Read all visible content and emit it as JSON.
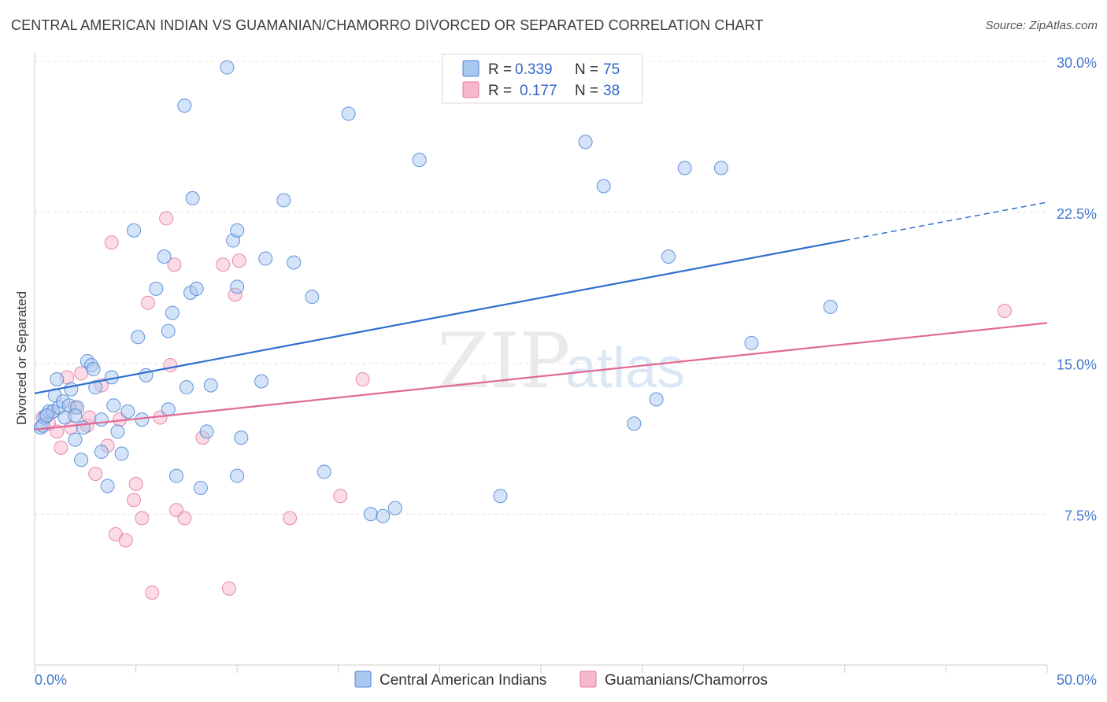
{
  "header": {
    "title": "CENTRAL AMERICAN INDIAN VS GUAMANIAN/CHAMORRO DIVORCED OR SEPARATED CORRELATION CHART",
    "source": "Source: ZipAtlas.com"
  },
  "watermark": {
    "part1": "ZIP",
    "part2": "atlas"
  },
  "colors": {
    "series1_fill": "#a9c8f0",
    "series1_stroke": "#4a84d4",
    "series1_line": "#2f6fcf",
    "series2_fill": "#f7b8cc",
    "series2_stroke": "#e07a9c",
    "series2_line": "#e06a93",
    "grid": "#e3e3e3",
    "axis_text": "#4477cc"
  },
  "chart_data": {
    "type": "scatter",
    "title": "CENTRAL AMERICAN INDIAN VS GUAMANIAN/CHAMORRO DIVORCED OR SEPARATED CORRELATION CHART",
    "xlabel": "",
    "ylabel": "Divorced or Separated",
    "xlim": [
      0,
      50
    ],
    "ylim": [
      0,
      30
    ],
    "x_tick_labels": {
      "min": "0.0%",
      "max": "50.0%"
    },
    "y_ticks": [
      {
        "value": 7.5,
        "label": "7.5%"
      },
      {
        "value": 15.0,
        "label": "15.0%"
      },
      {
        "value": 22.5,
        "label": "22.5%"
      },
      {
        "value": 30.0,
        "label": "30.0%"
      }
    ],
    "grid": true,
    "legend_top": [
      {
        "r_label": "R =",
        "r_value": "0.339",
        "n_label": "N =",
        "n_value": "75"
      },
      {
        "r_label": "R =",
        "r_value": "0.177",
        "n_label": "N =",
        "n_value": "38"
      }
    ],
    "series": [
      {
        "name": "Central American Indians",
        "trend": {
          "x0": 0,
          "y0": 13.5,
          "x1": 40,
          "y1": 21.1,
          "dash_to_x": 50,
          "dash_to_y": 23.0
        },
        "points": [
          [
            0.3,
            11.8
          ],
          [
            0.5,
            12.3
          ],
          [
            0.7,
            12.6
          ],
          [
            0.9,
            12.6
          ],
          [
            1.0,
            13.4
          ],
          [
            1.1,
            14.2
          ],
          [
            1.2,
            12.8
          ],
          [
            1.4,
            13.1
          ],
          [
            1.5,
            12.3
          ],
          [
            1.7,
            12.9
          ],
          [
            1.8,
            13.7
          ],
          [
            2.0,
            11.2
          ],
          [
            2.1,
            12.8
          ],
          [
            2.3,
            10.2
          ],
          [
            2.4,
            11.8
          ],
          [
            2.6,
            15.1
          ],
          [
            2.8,
            14.9
          ],
          [
            2.9,
            14.7
          ],
          [
            3.0,
            13.8
          ],
          [
            3.3,
            10.6
          ],
          [
            3.3,
            12.2
          ],
          [
            3.6,
            8.9
          ],
          [
            3.8,
            14.3
          ],
          [
            3.9,
            12.9
          ],
          [
            4.1,
            11.6
          ],
          [
            4.3,
            10.5
          ],
          [
            4.6,
            12.6
          ],
          [
            4.9,
            21.6
          ],
          [
            5.1,
            16.3
          ],
          [
            5.3,
            12.2
          ],
          [
            5.5,
            14.4
          ],
          [
            6.0,
            18.7
          ],
          [
            6.4,
            20.3
          ],
          [
            6.6,
            16.6
          ],
          [
            6.6,
            12.7
          ],
          [
            6.8,
            17.5
          ],
          [
            7.0,
            9.4
          ],
          [
            7.4,
            27.8
          ],
          [
            7.5,
            13.8
          ],
          [
            7.7,
            18.5
          ],
          [
            7.8,
            23.2
          ],
          [
            8.0,
            18.7
          ],
          [
            8.2,
            8.8
          ],
          [
            8.5,
            11.6
          ],
          [
            8.7,
            13.9
          ],
          [
            9.5,
            29.7
          ],
          [
            9.8,
            21.1
          ],
          [
            10.0,
            9.4
          ],
          [
            10.0,
            21.6
          ],
          [
            10.0,
            18.8
          ],
          [
            10.2,
            11.3
          ],
          [
            11.2,
            14.1
          ],
          [
            11.4,
            20.2
          ],
          [
            12.3,
            23.1
          ],
          [
            12.8,
            20.0
          ],
          [
            13.7,
            18.3
          ],
          [
            14.3,
            9.6
          ],
          [
            15.5,
            27.4
          ],
          [
            16.6,
            7.5
          ],
          [
            17.2,
            7.4
          ],
          [
            17.8,
            7.8
          ],
          [
            19.0,
            25.1
          ],
          [
            23.0,
            8.4
          ],
          [
            27.2,
            26.0
          ],
          [
            28.1,
            23.8
          ],
          [
            29.6,
            12.0
          ],
          [
            30.7,
            13.2
          ],
          [
            31.3,
            20.3
          ],
          [
            32.1,
            24.7
          ],
          [
            33.9,
            24.7
          ],
          [
            35.4,
            16.0
          ],
          [
            39.3,
            17.8
          ],
          [
            0.4,
            11.9
          ],
          [
            0.6,
            12.4
          ],
          [
            2.0,
            12.4
          ]
        ]
      },
      {
        "name": "Guamanians/Chamorros",
        "trend": {
          "x0": 0,
          "y0": 11.7,
          "x1": 50,
          "y1": 17.0
        },
        "points": [
          [
            0.4,
            12.3
          ],
          [
            0.7,
            12.0
          ],
          [
            0.9,
            12.6
          ],
          [
            1.1,
            11.6
          ],
          [
            1.3,
            10.8
          ],
          [
            1.6,
            14.3
          ],
          [
            2.0,
            12.8
          ],
          [
            2.3,
            14.5
          ],
          [
            2.6,
            11.9
          ],
          [
            2.7,
            12.3
          ],
          [
            3.0,
            9.5
          ],
          [
            3.3,
            13.9
          ],
          [
            3.6,
            10.9
          ],
          [
            3.8,
            21.0
          ],
          [
            4.0,
            6.5
          ],
          [
            4.2,
            12.2
          ],
          [
            4.5,
            6.2
          ],
          [
            4.9,
            8.2
          ],
          [
            5.0,
            9.0
          ],
          [
            5.3,
            7.3
          ],
          [
            5.6,
            18.0
          ],
          [
            5.8,
            3.6
          ],
          [
            6.2,
            12.3
          ],
          [
            6.5,
            22.2
          ],
          [
            6.7,
            14.9
          ],
          [
            6.9,
            19.9
          ],
          [
            7.0,
            7.7
          ],
          [
            7.4,
            7.3
          ],
          [
            8.3,
            11.3
          ],
          [
            9.3,
            19.9
          ],
          [
            9.6,
            3.8
          ],
          [
            9.9,
            18.4
          ],
          [
            10.1,
            20.1
          ],
          [
            12.6,
            7.3
          ],
          [
            15.1,
            8.4
          ],
          [
            16.2,
            14.2
          ],
          [
            47.9,
            17.6
          ],
          [
            1.8,
            11.8
          ]
        ]
      }
    ]
  },
  "legend_bottom": [
    {
      "label": "Central American Indians"
    },
    {
      "label": "Guamanians/Chamorros"
    }
  ]
}
